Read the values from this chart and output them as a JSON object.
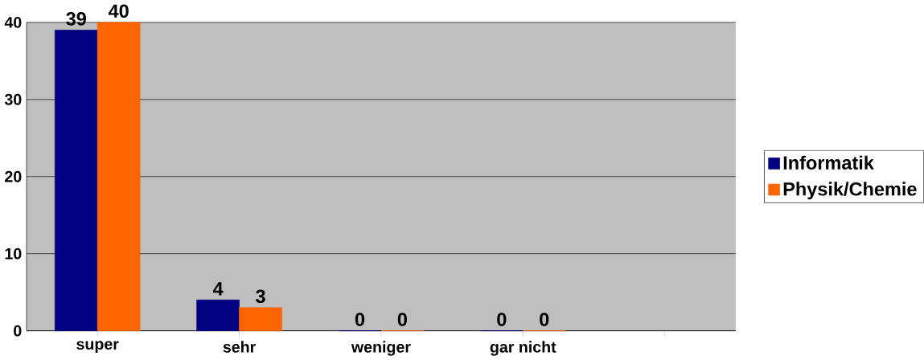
{
  "chart_data": {
    "type": "bar",
    "categories": [
      "super",
      "sehr",
      "weniger",
      "gar nicht",
      null
    ],
    "series": [
      {
        "name": "Informatik",
        "color": "#000080",
        "values": [
          39,
          4,
          0,
          0,
          null
        ]
      },
      {
        "name": "Physik/Chemie",
        "color": "#ff6600",
        "values": [
          40,
          3,
          0,
          0,
          null
        ]
      }
    ],
    "ylim": [
      0,
      40
    ],
    "yticks": [
      0,
      10,
      20,
      30,
      40
    ],
    "grid": "y",
    "legend": "right",
    "data_labels": true
  }
}
